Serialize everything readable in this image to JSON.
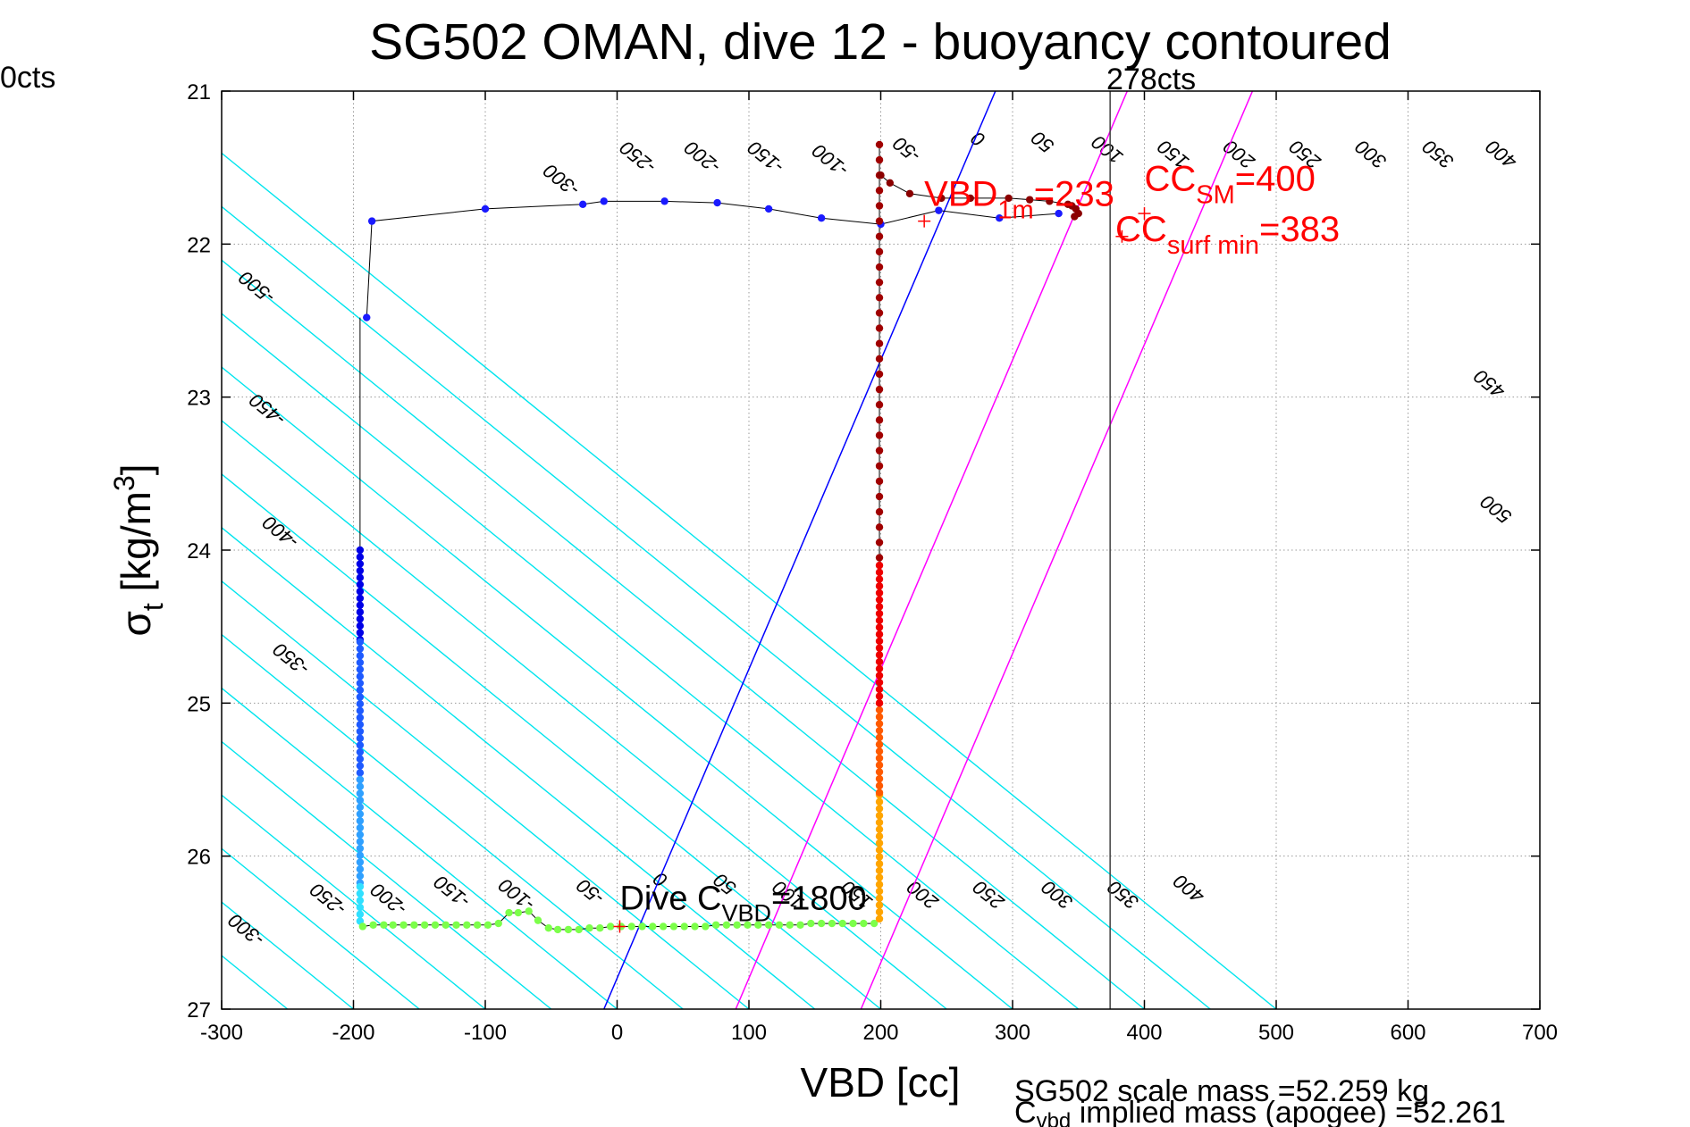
{
  "figure": {
    "title": "SG502 OMAN, dive 12 - buoyancy contoured",
    "corner_label": "0cts",
    "footer_line1": "SG502 scale mass =52.259 kg",
    "footer_line2_c": "C",
    "footer_line2_sub": "vbd",
    "footer_line2_rest": " implied mass (apogee) =52.261"
  },
  "chart_data": {
    "type": "scatter",
    "title": "SG502 OMAN, dive 12 - buoyancy contoured",
    "xlabel": "VBD [cc]",
    "ylabel_main": "σ",
    "ylabel_sub": "t",
    "ylabel_rest": " [kg/m",
    "ylabel_sup": "3",
    "ylabel_end": "]",
    "xlim": [
      -300,
      700
    ],
    "ylim": [
      21,
      27
    ],
    "y_reversed": true,
    "grid": true,
    "xticks": [
      -300,
      -200,
      -100,
      0,
      100,
      200,
      300,
      400,
      500,
      600,
      700
    ],
    "yticks": [
      21,
      22,
      23,
      24,
      25,
      26,
      27
    ],
    "contour_slope": 143,
    "contours": {
      "color": "#00e5ee",
      "offsets": [
        -500,
        -450,
        -400,
        -350,
        -300,
        -250,
        -200,
        -150,
        -100,
        -50,
        0,
        50,
        100,
        150,
        200,
        250,
        300,
        350,
        400,
        450,
        500
      ],
      "labels_top": [
        {
          "text": "-500",
          "x": -270,
          "y": 22.25
        },
        {
          "text": "-450",
          "x": -262,
          "y": 23.05
        },
        {
          "text": "-400",
          "x": -252,
          "y": 23.85
        },
        {
          "text": "-350",
          "x": -244,
          "y": 24.68
        },
        {
          "text": "-300",
          "x": -39,
          "y": 21.55
        },
        {
          "text": "-250",
          "x": 19,
          "y": 21.4
        },
        {
          "text": "-200",
          "x": 68,
          "y": 21.4
        },
        {
          "text": "-150",
          "x": 116,
          "y": 21.4
        },
        {
          "text": "-100",
          "x": 165,
          "y": 21.42
        },
        {
          "text": "-50",
          "x": 223,
          "y": 21.35
        },
        {
          "text": "0",
          "x": 277,
          "y": 21.28
        },
        {
          "text": "50",
          "x": 326,
          "y": 21.3
        },
        {
          "text": "100",
          "x": 375,
          "y": 21.35
        },
        {
          "text": "150",
          "x": 425,
          "y": 21.38
        },
        {
          "text": "200",
          "x": 475,
          "y": 21.38
        },
        {
          "text": "250",
          "x": 525,
          "y": 21.38
        },
        {
          "text": "300",
          "x": 575,
          "y": 21.38
        },
        {
          "text": "350",
          "x": 626,
          "y": 21.38
        },
        {
          "text": "400",
          "x": 674,
          "y": 21.38
        },
        {
          "text": "450",
          "x": 665,
          "y": 22.88
        },
        {
          "text": "500",
          "x": 670,
          "y": 23.7
        }
      ],
      "labels_bottom": [
        {
          "text": "-300",
          "x": -278,
          "y": 26.45
        },
        {
          "text": "-250",
          "x": -216,
          "y": 26.25
        },
        {
          "text": "-200",
          "x": -170,
          "y": 26.25
        },
        {
          "text": "-150",
          "x": -122,
          "y": 26.2
        },
        {
          "text": "-100",
          "x": -73,
          "y": 26.22
        },
        {
          "text": "-50",
          "x": -17,
          "y": 26.2
        },
        {
          "text": "0",
          "x": 36,
          "y": 26.12
        },
        {
          "text": "50",
          "x": 85,
          "y": 26.15
        },
        {
          "text": "100",
          "x": 133,
          "y": 26.22
        },
        {
          "text": "150",
          "x": 185,
          "y": 26.22
        },
        {
          "text": "200",
          "x": 235,
          "y": 26.22
        },
        {
          "text": "250",
          "x": 285,
          "y": 26.22
        },
        {
          "text": "300",
          "x": 337,
          "y": 26.22
        },
        {
          "text": "350",
          "x": 387,
          "y": 26.22
        },
        {
          "text": "400",
          "x": 437,
          "y": 26.18
        }
      ]
    },
    "reference_lines": [
      {
        "name": "blue",
        "color": "#0000ff",
        "x_at_27": -10,
        "x_at_21": 287
      },
      {
        "name": "magenta-1",
        "color": "#ff00ff",
        "x_at_27": 90,
        "x_at_21": 387
      },
      {
        "name": "magenta-2",
        "color": "#ff00ff",
        "x_at_27": 185,
        "x_at_21": 482
      },
      {
        "name": "cts-line",
        "color": "#404040",
        "x_at_27": 374,
        "x_at_21": 374
      }
    ],
    "cts_label": "278cts",
    "annotations": {
      "dive_c_vbd": {
        "main": "Dive C",
        "sub": "VBD",
        "rest": "=1800",
        "x": 2,
        "y": 26.35,
        "color": "#000000"
      },
      "vbd_1m": {
        "main": "VBD",
        "sub": "1m",
        "rest": "=233",
        "x": 233,
        "y": 21.75,
        "color": "#ff0000"
      },
      "cc_sm": {
        "main": "CC",
        "sub": "SM",
        "rest": "=400",
        "x": 400,
        "y": 21.65,
        "color": "#ff0000"
      },
      "cc_surf_min": {
        "main": "CC",
        "sub": "surf min",
        "rest": "=383",
        "x": 378,
        "y": 21.98,
        "color": "#ff0000"
      }
    },
    "markers": [
      {
        "x": 2,
        "y": 26.46,
        "color": "#ff0000"
      },
      {
        "x": 233,
        "y": 21.85,
        "color": "#ff0000"
      },
      {
        "x": 400,
        "y": 21.8,
        "color": "#ff0000"
      },
      {
        "x": 383,
        "y": 21.95,
        "color": "#ff0000"
      }
    ],
    "series": [
      {
        "color": "#1a1aff",
        "points": [
          [
            -190,
            22.48
          ],
          [
            -186,
            21.85
          ],
          [
            -100,
            21.77
          ],
          [
            -26,
            21.74
          ],
          [
            -10,
            21.72
          ],
          [
            36,
            21.72
          ],
          [
            76,
            21.73
          ],
          [
            115,
            21.77
          ],
          [
            155,
            21.83
          ],
          [
            200,
            21.87
          ],
          [
            244,
            21.78
          ],
          [
            290,
            21.83
          ],
          [
            335,
            21.8
          ]
        ]
      },
      {
        "color": "#0000e6",
        "vertical": {
          "x": -195,
          "y_from": 24.0,
          "y_to": 24.6,
          "step": 0.045
        }
      },
      {
        "color": "#1e5aff",
        "vertical": {
          "x": -195,
          "y_from": 24.6,
          "y_to": 25.5,
          "step": 0.045
        }
      },
      {
        "color": "#2fa0ff",
        "vertical": {
          "x": -195,
          "y_from": 25.5,
          "y_to": 26.2,
          "step": 0.045
        }
      },
      {
        "color": "#30e0ff",
        "vertical": {
          "x": -195,
          "y_from": 26.2,
          "y_to": 26.45,
          "step": 0.045
        }
      },
      {
        "color": "#7cff4a",
        "points": [
          [
            -193,
            26.46
          ],
          [
            -185,
            26.45
          ],
          [
            -177,
            26.45
          ],
          [
            -170,
            26.45
          ],
          [
            -162,
            26.45
          ],
          [
            -154,
            26.45
          ],
          [
            -146,
            26.45
          ],
          [
            -138,
            26.45
          ],
          [
            -130,
            26.45
          ],
          [
            -122,
            26.45
          ],
          [
            -114,
            26.45
          ],
          [
            -106,
            26.45
          ],
          [
            -98,
            26.45
          ],
          [
            -90,
            26.44
          ],
          [
            -82,
            26.37
          ],
          [
            -75,
            26.37
          ],
          [
            -67,
            26.36
          ],
          [
            -60,
            26.42
          ],
          [
            -52,
            26.47
          ],
          [
            -45,
            26.48
          ],
          [
            -37,
            26.48
          ],
          [
            -29,
            26.48
          ],
          [
            -21,
            26.47
          ],
          [
            -13,
            26.47
          ],
          [
            -5,
            26.46
          ],
          [
            3,
            26.46
          ],
          [
            11,
            26.46
          ],
          [
            19,
            26.46
          ],
          [
            27,
            26.46
          ],
          [
            35,
            26.46
          ],
          [
            43,
            26.46
          ],
          [
            51,
            26.46
          ],
          [
            59,
            26.46
          ],
          [
            67,
            26.46
          ],
          [
            75,
            26.45
          ],
          [
            83,
            26.45
          ],
          [
            91,
            26.45
          ],
          [
            99,
            26.45
          ],
          [
            107,
            26.45
          ],
          [
            115,
            26.45
          ],
          [
            123,
            26.45
          ],
          [
            131,
            26.45
          ],
          [
            139,
            26.45
          ],
          [
            147,
            26.44
          ],
          [
            155,
            26.44
          ],
          [
            163,
            26.44
          ],
          [
            171,
            26.44
          ],
          [
            179,
            26.44
          ],
          [
            187,
            26.44
          ],
          [
            195,
            26.44
          ]
        ]
      },
      {
        "color": "#ffa500",
        "vertical": {
          "x": 199,
          "y_from": 25.6,
          "y_to": 26.42,
          "step": 0.045
        }
      },
      {
        "color": "#ff5a00",
        "vertical": {
          "x": 199,
          "y_from": 25.0,
          "y_to": 25.6,
          "step": 0.045
        }
      },
      {
        "color": "#ee0000",
        "vertical": {
          "x": 199,
          "y_from": 24.1,
          "y_to": 25.0,
          "step": 0.045
        }
      },
      {
        "color": "#a00000",
        "vertical": {
          "x": 199,
          "y_from": 21.35,
          "y_to": 24.1,
          "step": 0.1
        }
      },
      {
        "color": "#8b0000",
        "points": [
          [
            200,
            21.55
          ],
          [
            207,
            21.6
          ],
          [
            222,
            21.67
          ],
          [
            246,
            21.7
          ],
          [
            268,
            21.7
          ],
          [
            297,
            21.7
          ],
          [
            313,
            21.71
          ],
          [
            328,
            21.72
          ],
          [
            342,
            21.74
          ],
          [
            345,
            21.75
          ],
          [
            348,
            21.77
          ],
          [
            350,
            21.8
          ],
          [
            347,
            21.82
          ]
        ]
      }
    ]
  }
}
